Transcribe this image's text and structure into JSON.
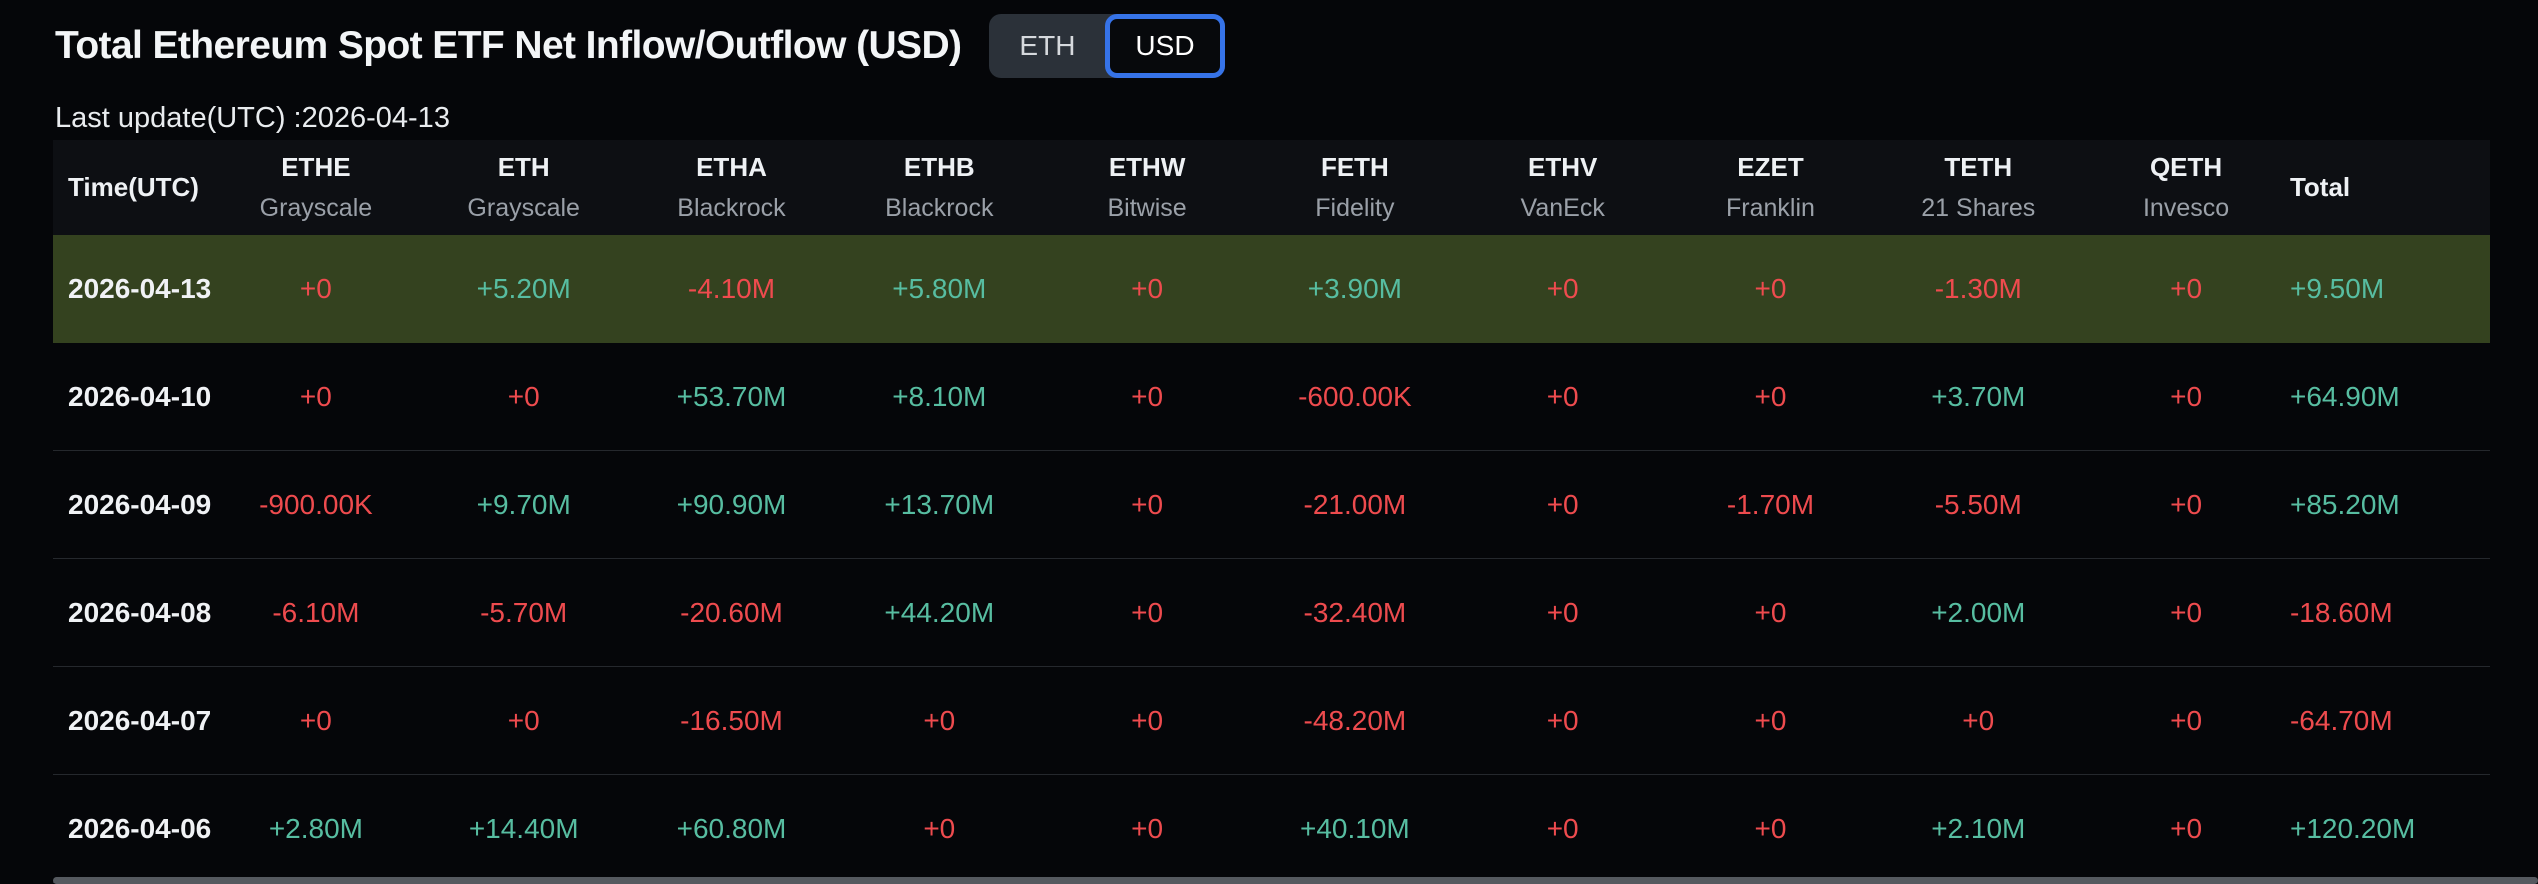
{
  "page": {
    "title": "Total Ethereum Spot ETF Net Inflow/Outflow (USD)",
    "last_update": "Last update(UTC) :2026-04-13",
    "toggle": {
      "eth_label": "ETH",
      "usd_label": "USD",
      "selected": "USD"
    }
  },
  "colors": {
    "positive_text": "#57bda1",
    "negative_text": "#ee4b4e",
    "highlight_row_bg": "#34421f",
    "accent_blue": "#3673e8",
    "header_bg": "#0d0f13",
    "page_bg": "#050609"
  },
  "table": {
    "time_header": "Time(UTC)",
    "total_header": "Total",
    "columns": [
      {
        "ticker": "ETHE",
        "issuer": "Grayscale"
      },
      {
        "ticker": "ETH",
        "issuer": "Grayscale"
      },
      {
        "ticker": "ETHA",
        "issuer": "Blackrock"
      },
      {
        "ticker": "ETHB",
        "issuer": "Blackrock"
      },
      {
        "ticker": "ETHW",
        "issuer": "Bitwise"
      },
      {
        "ticker": "FETH",
        "issuer": "Fidelity"
      },
      {
        "ticker": "ETHV",
        "issuer": "VanEck"
      },
      {
        "ticker": "EZET",
        "issuer": "Franklin"
      },
      {
        "ticker": "TETH",
        "issuer": "21 Shares"
      },
      {
        "ticker": "QETH",
        "issuer": "Invesco"
      }
    ],
    "rows": [
      {
        "date": "2026-04-13",
        "highlighted": true,
        "values": [
          "+0",
          "+5.20M",
          "-4.10M",
          "+5.80M",
          "+0",
          "+3.90M",
          "+0",
          "+0",
          "-1.30M",
          "+0"
        ],
        "total": "+9.50M"
      },
      {
        "date": "2026-04-10",
        "highlighted": false,
        "values": [
          "+0",
          "+0",
          "+53.70M",
          "+8.10M",
          "+0",
          "-600.00K",
          "+0",
          "+0",
          "+3.70M",
          "+0"
        ],
        "total": "+64.90M"
      },
      {
        "date": "2026-04-09",
        "highlighted": false,
        "values": [
          "-900.00K",
          "+9.70M",
          "+90.90M",
          "+13.70M",
          "+0",
          "-21.00M",
          "+0",
          "-1.70M",
          "-5.50M",
          "+0"
        ],
        "total": "+85.20M"
      },
      {
        "date": "2026-04-08",
        "highlighted": false,
        "values": [
          "-6.10M",
          "-5.70M",
          "-20.60M",
          "+44.20M",
          "+0",
          "-32.40M",
          "+0",
          "+0",
          "+2.00M",
          "+0"
        ],
        "total": "-18.60M"
      },
      {
        "date": "2026-04-07",
        "highlighted": false,
        "values": [
          "+0",
          "+0",
          "-16.50M",
          "+0",
          "+0",
          "-48.20M",
          "+0",
          "+0",
          "+0",
          "+0"
        ],
        "total": "-64.70M"
      },
      {
        "date": "2026-04-06",
        "highlighted": false,
        "values": [
          "+2.80M",
          "+14.40M",
          "+60.80M",
          "+0",
          "+0",
          "+40.10M",
          "+0",
          "+0",
          "+2.10M",
          "+0"
        ],
        "total": "+120.20M"
      }
    ]
  }
}
